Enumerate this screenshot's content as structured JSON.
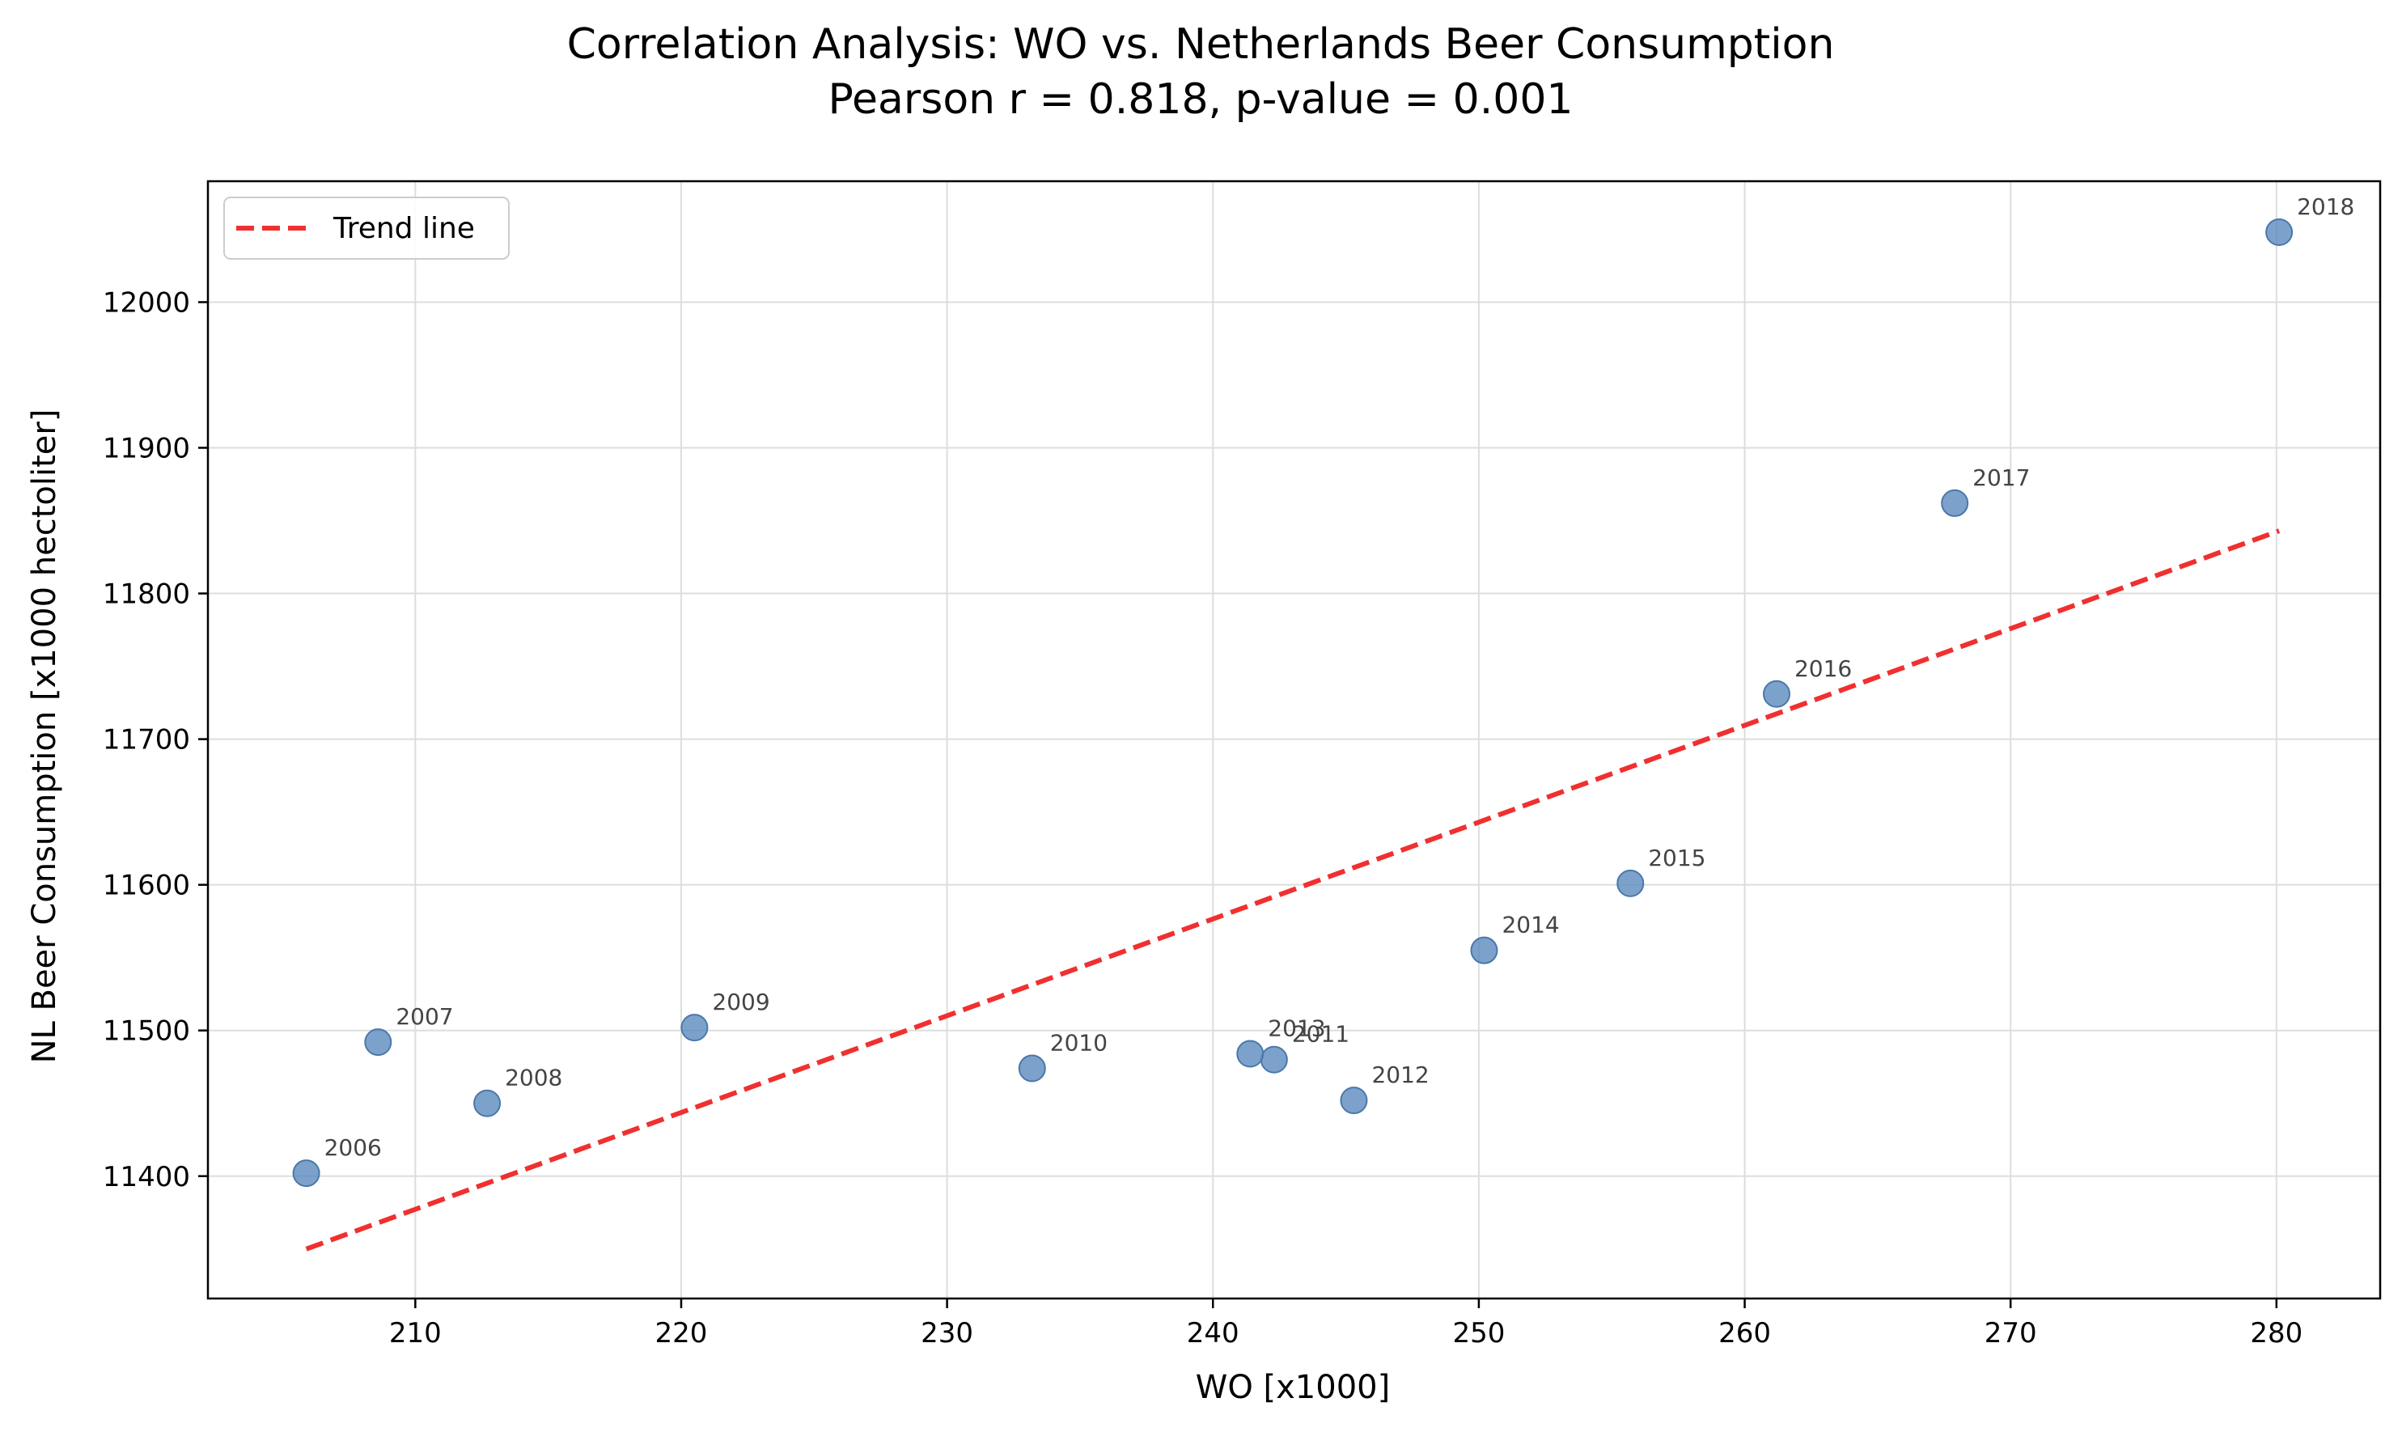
{
  "chart_data": {
    "type": "scatter",
    "title": "Correlation Analysis: WO vs. Netherlands Beer Consumption",
    "subtitle": "Pearson r = 0.818, p-value = 0.001",
    "xlabel": "WO [x1000]",
    "ylabel": "NL Beer Consumption [x1000 hectoliter]",
    "xlim": [
      202.2,
      283.9
    ],
    "ylim": [
      11316,
      12083
    ],
    "xticks": [
      210,
      220,
      230,
      240,
      250,
      260,
      270,
      280
    ],
    "yticks": [
      11400,
      11500,
      11600,
      11700,
      11800,
      11900,
      12000
    ],
    "grid": true,
    "legend": {
      "placement": "top-left",
      "entries": [
        "Trend line"
      ]
    },
    "colors": {
      "points": "#5b8bbe",
      "trend": "#f03030"
    },
    "points": [
      {
        "label": "2006",
        "x": 205.9,
        "y": 11402
      },
      {
        "label": "2007",
        "x": 208.6,
        "y": 11492
      },
      {
        "label": "2008",
        "x": 212.7,
        "y": 11450
      },
      {
        "label": "2009",
        "x": 220.5,
        "y": 11502
      },
      {
        "label": "2010",
        "x": 233.2,
        "y": 11474
      },
      {
        "label": "2011",
        "x": 242.3,
        "y": 11480
      },
      {
        "label": "2012",
        "x": 245.3,
        "y": 11452
      },
      {
        "label": "2013",
        "x": 241.4,
        "y": 11484
      },
      {
        "label": "2014",
        "x": 250.2,
        "y": 11555
      },
      {
        "label": "2015",
        "x": 255.7,
        "y": 11601
      },
      {
        "label": "2016",
        "x": 261.2,
        "y": 11731
      },
      {
        "label": "2017",
        "x": 267.9,
        "y": 11862
      },
      {
        "label": "2018",
        "x": 280.1,
        "y": 12048
      }
    ],
    "trend_line": {
      "name": "Trend line",
      "x": [
        205.9,
        280.1
      ],
      "y": [
        11350,
        11843
      ]
    }
  }
}
